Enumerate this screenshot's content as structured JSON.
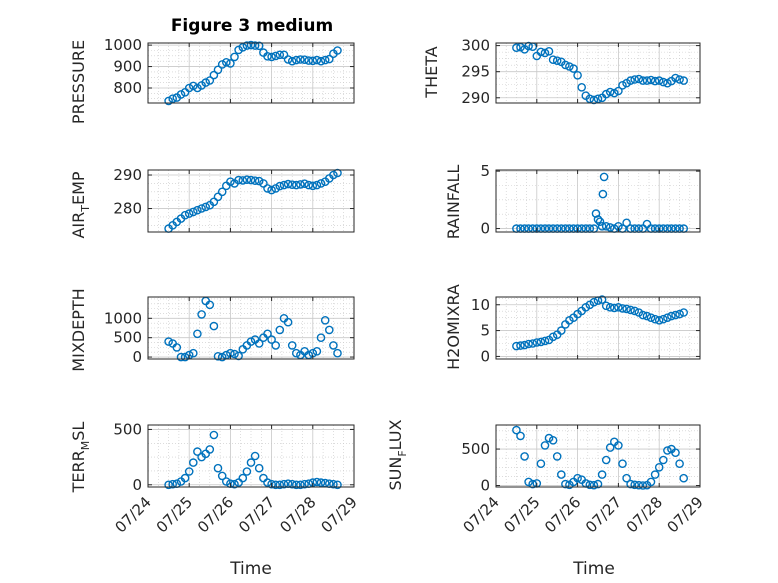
{
  "colors": {
    "marker": "#0072BD",
    "grid": "#c8c8c8",
    "axis": "#262626"
  },
  "chart_data": [
    {
      "type": "scatter",
      "title": "Figure 3 medium",
      "xlabel": "",
      "ylabel": "PRESSURE",
      "ylim": [
        730,
        1010
      ],
      "yticks": [
        800,
        900,
        1000
      ],
      "ytick_labels": [
        "800",
        "900",
        "1000"
      ],
      "xlim": [
        0,
        5
      ],
      "xticks": [
        0,
        1,
        2,
        3,
        4,
        5
      ],
      "x": [
        0.5,
        0.6,
        0.7,
        0.8,
        0.9,
        1.0,
        1.1,
        1.2,
        1.3,
        1.4,
        1.5,
        1.6,
        1.7,
        1.8,
        1.9,
        2.0,
        2.1,
        2.2,
        2.3,
        2.4,
        2.5,
        2.6,
        2.7,
        2.8,
        2.9,
        3.0,
        3.1,
        3.2,
        3.3,
        3.4,
        3.5,
        3.6,
        3.7,
        3.8,
        3.9,
        4.0,
        4.1,
        4.2,
        4.3,
        4.4,
        4.5,
        4.6
      ],
      "y": [
        740,
        750,
        755,
        770,
        780,
        800,
        810,
        800,
        812,
        825,
        835,
        860,
        885,
        910,
        920,
        915,
        945,
        978,
        990,
        998,
        1000,
        998,
        997,
        965,
        948,
        945,
        950,
        955,
        955,
        933,
        925,
        930,
        933,
        932,
        928,
        927,
        930,
        925,
        930,
        935,
        960,
        975
      ]
    },
    {
      "type": "scatter",
      "title": "",
      "xlabel": "",
      "ylabel": "THETA",
      "ylim": [
        289,
        300.5
      ],
      "yticks": [
        290,
        295,
        300
      ],
      "ytick_labels": [
        "290",
        "295",
        "300"
      ],
      "xlim": [
        0,
        5
      ],
      "xticks": [
        0,
        1,
        2,
        3,
        4,
        5
      ],
      "x": [
        0.5,
        0.6,
        0.7,
        0.8,
        0.9,
        1.0,
        1.1,
        1.2,
        1.3,
        1.4,
        1.5,
        1.6,
        1.7,
        1.8,
        1.9,
        2.0,
        2.1,
        2.2,
        2.3,
        2.4,
        2.5,
        2.6,
        2.7,
        2.8,
        2.9,
        3.0,
        3.1,
        3.2,
        3.3,
        3.4,
        3.5,
        3.6,
        3.7,
        3.8,
        3.9,
        4.0,
        4.1,
        4.2,
        4.3,
        4.4,
        4.5,
        4.6
      ],
      "y": [
        299.6,
        299.7,
        299.3,
        299.9,
        299.8,
        298.0,
        298.8,
        298.6,
        298.9,
        297.3,
        297.1,
        296.9,
        296.3,
        296.0,
        295.6,
        294.3,
        292.0,
        290.4,
        289.8,
        289.6,
        289.8,
        290.0,
        290.7,
        291.1,
        290.9,
        291.3,
        292.4,
        292.8,
        293.3,
        293.5,
        293.6,
        293.3,
        293.3,
        293.4,
        293.2,
        293.3,
        293.0,
        292.8,
        293.2,
        293.8,
        293.5,
        293.3
      ]
    },
    {
      "type": "scatter",
      "title": "",
      "xlabel": "",
      "ylabel": "AIR_TEMP",
      "ylim": [
        273,
        291.5
      ],
      "yticks": [
        280,
        290
      ],
      "ytick_labels": [
        "280",
        "290"
      ],
      "xlim": [
        0,
        5
      ],
      "xticks": [
        0,
        1,
        2,
        3,
        4,
        5
      ],
      "x": [
        0.5,
        0.6,
        0.7,
        0.8,
        0.9,
        1.0,
        1.1,
        1.2,
        1.3,
        1.4,
        1.5,
        1.6,
        1.7,
        1.8,
        1.9,
        2.0,
        2.1,
        2.2,
        2.3,
        2.4,
        2.5,
        2.6,
        2.7,
        2.8,
        2.9,
        3.0,
        3.1,
        3.2,
        3.3,
        3.4,
        3.5,
        3.6,
        3.7,
        3.8,
        3.9,
        4.0,
        4.1,
        4.2,
        4.3,
        4.4,
        4.5,
        4.6
      ],
      "y": [
        274,
        275,
        276,
        277,
        278,
        278.5,
        279,
        279.5,
        280,
        280.5,
        281,
        282,
        283.5,
        285,
        286.8,
        288,
        287.5,
        288.5,
        288.4,
        288.6,
        288.5,
        288.3,
        288.2,
        287.5,
        286,
        285.5,
        286,
        286.7,
        287,
        287.3,
        287.1,
        287,
        287.2,
        287.4,
        287,
        286.8,
        287,
        287.5,
        288,
        289,
        290,
        290.6
      ]
    },
    {
      "type": "scatter",
      "title": "",
      "xlabel": "",
      "ylabel": "RAINFALL",
      "ylim": [
        -0.3,
        5.1
      ],
      "yticks": [
        0,
        5
      ],
      "ytick_labels": [
        "0",
        "5"
      ],
      "xlim": [
        0,
        5
      ],
      "xticks": [
        0,
        1,
        2,
        3,
        4,
        5
      ],
      "x": [
        0.5,
        0.6,
        0.7,
        0.8,
        0.9,
        1.0,
        1.1,
        1.2,
        1.3,
        1.4,
        1.5,
        1.6,
        1.7,
        1.8,
        1.9,
        2.0,
        2.1,
        2.2,
        2.3,
        2.4,
        2.45,
        2.5,
        2.55,
        2.6,
        2.62,
        2.65,
        2.7,
        2.8,
        2.9,
        3.0,
        3.1,
        3.2,
        3.3,
        3.4,
        3.5,
        3.6,
        3.7,
        3.8,
        3.9,
        4.0,
        4.1,
        4.2,
        4.3,
        4.4,
        4.5,
        4.6
      ],
      "y": [
        0,
        0,
        0,
        0,
        0,
        0,
        0,
        0,
        0,
        0,
        0,
        0,
        0,
        0,
        0,
        0,
        0,
        0,
        0,
        0,
        1.3,
        0.8,
        0.6,
        0.2,
        3.0,
        4.5,
        0.2,
        0.1,
        0,
        0.2,
        0,
        0.5,
        0,
        0,
        0,
        0,
        0.4,
        0,
        0,
        0,
        0,
        0,
        0,
        0,
        0,
        0
      ]
    },
    {
      "type": "scatter",
      "title": "",
      "xlabel": "",
      "ylabel": "MIXDEPTH",
      "ylim": [
        -50,
        1550
      ],
      "yticks": [
        0,
        500,
        1000
      ],
      "ytick_labels": [
        "0",
        "500",
        "1000"
      ],
      "xlim": [
        0,
        5
      ],
      "xticks": [
        0,
        1,
        2,
        3,
        4,
        5
      ],
      "x": [
        0.5,
        0.6,
        0.7,
        0.8,
        0.9,
        1.0,
        1.1,
        1.2,
        1.3,
        1.4,
        1.5,
        1.6,
        1.7,
        1.8,
        1.9,
        2.0,
        2.1,
        2.2,
        2.3,
        2.4,
        2.5,
        2.6,
        2.7,
        2.8,
        2.9,
        3.0,
        3.1,
        3.2,
        3.3,
        3.4,
        3.5,
        3.6,
        3.7,
        3.8,
        3.9,
        4.0,
        4.1,
        4.2,
        4.3,
        4.4,
        4.5,
        4.6
      ],
      "y": [
        400,
        350,
        250,
        0,
        0,
        50,
        100,
        600,
        1100,
        1450,
        1350,
        800,
        20,
        0,
        50,
        100,
        80,
        30,
        200,
        300,
        400,
        450,
        350,
        500,
        600,
        450,
        300,
        700,
        1000,
        900,
        300,
        100,
        50,
        150,
        50,
        100,
        150,
        500,
        950,
        700,
        300,
        100
      ]
    },
    {
      "type": "scatter",
      "title": "",
      "xlabel": "",
      "ylabel": "H2OMIXRA",
      "ylim": [
        -0.5,
        11.5
      ],
      "yticks": [
        0,
        5,
        10
      ],
      "ytick_labels": [
        "0",
        "5",
        "10"
      ],
      "xlim": [
        0,
        5
      ],
      "xticks": [
        0,
        1,
        2,
        3,
        4,
        5
      ],
      "x": [
        0.5,
        0.6,
        0.7,
        0.8,
        0.9,
        1.0,
        1.1,
        1.2,
        1.3,
        1.4,
        1.5,
        1.6,
        1.7,
        1.8,
        1.9,
        2.0,
        2.1,
        2.2,
        2.3,
        2.4,
        2.5,
        2.6,
        2.7,
        2.8,
        2.9,
        3.0,
        3.1,
        3.2,
        3.3,
        3.4,
        3.5,
        3.6,
        3.7,
        3.8,
        3.9,
        4.0,
        4.1,
        4.2,
        4.3,
        4.4,
        4.5,
        4.6
      ],
      "y": [
        2.0,
        2.1,
        2.2,
        2.4,
        2.5,
        2.7,
        2.8,
        3.0,
        3.2,
        3.8,
        4.2,
        5.0,
        6.2,
        7.0,
        7.5,
        8.2,
        8.8,
        9.5,
        10.0,
        10.5,
        10.8,
        11.0,
        9.8,
        9.5,
        9.4,
        9.5,
        9.3,
        9.2,
        9.0,
        8.8,
        8.5,
        8.0,
        7.8,
        7.5,
        7.2,
        7.0,
        7.2,
        7.5,
        7.8,
        8.0,
        8.2,
        8.5
      ]
    },
    {
      "type": "scatter",
      "title": "",
      "xlabel": "Time",
      "ylabel": "TERR_MSL",
      "ylim": [
        -20,
        540
      ],
      "yticks": [
        0,
        500
      ],
      "ytick_labels": [
        "0",
        "500"
      ],
      "xlim": [
        0,
        5
      ],
      "xticks": [
        0,
        1,
        2,
        3,
        4,
        5
      ],
      "xtick_labels": [
        "07/24",
        "07/25",
        "07/26",
        "07/27",
        "07/28",
        "07/29"
      ],
      "x": [
        0.5,
        0.6,
        0.7,
        0.8,
        0.9,
        1.0,
        1.1,
        1.2,
        1.3,
        1.4,
        1.5,
        1.6,
        1.7,
        1.8,
        1.9,
        2.0,
        2.1,
        2.2,
        2.3,
        2.4,
        2.5,
        2.6,
        2.7,
        2.8,
        2.9,
        3.0,
        3.1,
        3.2,
        3.3,
        3.4,
        3.5,
        3.6,
        3.7,
        3.8,
        3.9,
        4.0,
        4.1,
        4.2,
        4.3,
        4.4,
        4.5,
        4.6
      ],
      "y": [
        0,
        5,
        10,
        30,
        60,
        120,
        200,
        300,
        250,
        280,
        320,
        450,
        150,
        80,
        30,
        10,
        5,
        20,
        60,
        120,
        200,
        260,
        150,
        60,
        20,
        5,
        0,
        0,
        5,
        10,
        5,
        0,
        0,
        5,
        10,
        20,
        25,
        20,
        15,
        10,
        5,
        0
      ]
    },
    {
      "type": "scatter",
      "title": "",
      "xlabel": "Time",
      "ylabel": "SUN_FLUX",
      "ylim": [
        -20,
        830
      ],
      "yticks": [
        0,
        500
      ],
      "ytick_labels": [
        "0",
        "500"
      ],
      "xlim": [
        0,
        5
      ],
      "xticks": [
        0,
        1,
        2,
        3,
        4,
        5
      ],
      "xtick_labels": [
        "07/24",
        "07/25",
        "07/26",
        "07/27",
        "07/28",
        "07/29"
      ],
      "x": [
        0.5,
        0.6,
        0.7,
        0.8,
        0.9,
        1.0,
        1.1,
        1.2,
        1.3,
        1.4,
        1.5,
        1.6,
        1.7,
        1.8,
        1.9,
        2.0,
        2.1,
        2.2,
        2.3,
        2.4,
        2.5,
        2.6,
        2.7,
        2.8,
        2.9,
        3.0,
        3.1,
        3.2,
        3.3,
        3.4,
        3.5,
        3.6,
        3.7,
        3.8,
        3.9,
        4.0,
        4.1,
        4.2,
        4.3,
        4.4,
        4.5,
        4.6
      ],
      "y": [
        760,
        680,
        400,
        50,
        20,
        30,
        300,
        550,
        650,
        620,
        400,
        150,
        20,
        10,
        50,
        100,
        80,
        30,
        10,
        5,
        20,
        150,
        350,
        520,
        600,
        550,
        300,
        100,
        20,
        10,
        5,
        0,
        5,
        50,
        150,
        250,
        350,
        480,
        500,
        450,
        300,
        100
      ]
    }
  ]
}
